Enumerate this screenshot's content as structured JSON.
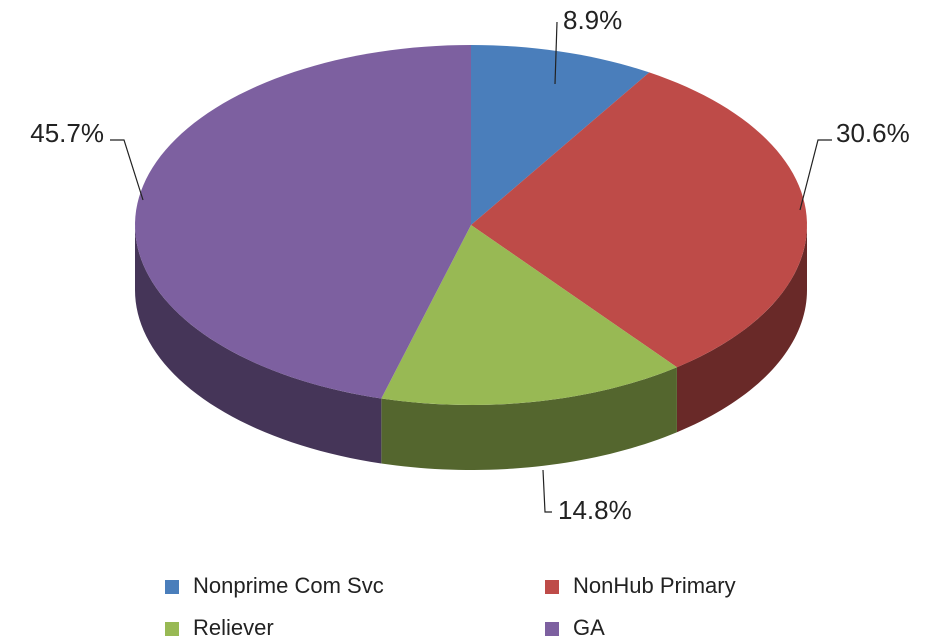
{
  "chart_data": {
    "type": "pie",
    "categories": [
      "Nonprime Com Svc",
      "NonHub Primary",
      "Reliever",
      "GA"
    ],
    "values": [
      8.9,
      30.6,
      14.8,
      45.7
    ],
    "value_labels": [
      "8.9%",
      "30.6%",
      "14.8%",
      "45.7%"
    ],
    "colors": [
      "#4a7ebb",
      "#be4b48",
      "#98b954",
      "#7d60a0"
    ],
    "legend": "bottom"
  }
}
